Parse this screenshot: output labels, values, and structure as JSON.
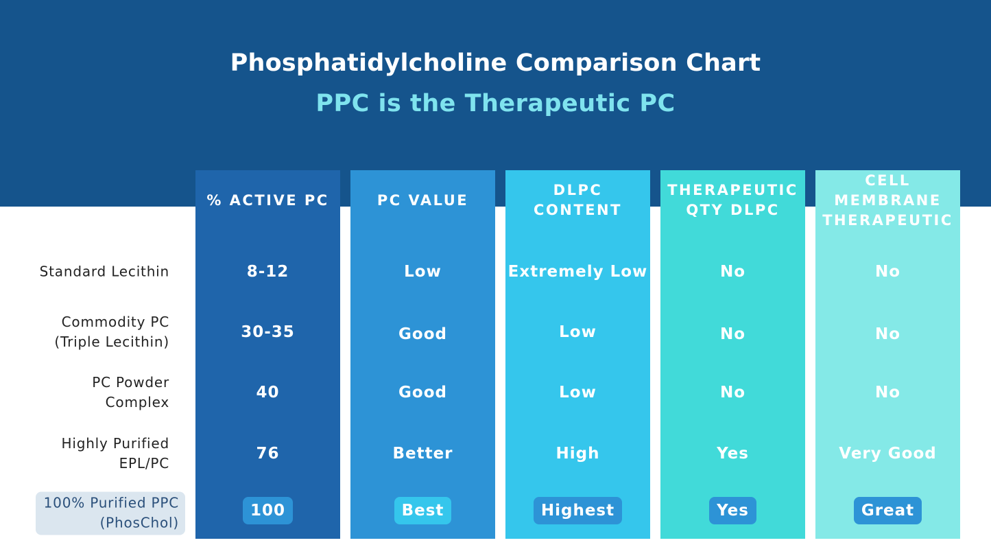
{
  "title": "Phosphatidylcholine Comparison Chart",
  "subtitle": "PPC is the Therapeutic PC",
  "colors": {
    "banner": "#15548c",
    "subtitle": "#7fe3ee",
    "col1": "#1f65ab",
    "col2": "#2d93d6",
    "col3": "#35c6ec",
    "col4": "#41dad9",
    "col5": "#84e9e7",
    "highlight_label_bg": "#dbe6ef"
  },
  "columns": [
    {
      "header": "% ACTIVE PC"
    },
    {
      "header": "PC VALUE"
    },
    {
      "header": "DLPC\nCONTENT"
    },
    {
      "header": "THERAPEUTIC\nQTY DLPC"
    },
    {
      "header": "CELL\nMEMBRANE\nTHERAPEUTIC"
    }
  ],
  "rows": [
    {
      "label": "Standard Lecithin",
      "values": [
        "8-12",
        "Low",
        "Extremely Low",
        "No",
        "No"
      ]
    },
    {
      "label": "Commodity PC\n(Triple Lecithin)",
      "values": [
        "30-35",
        "Good",
        "Low",
        "No",
        "No"
      ]
    },
    {
      "label": "PC Powder\nComplex",
      "values": [
        "40",
        "Good",
        "Low",
        "No",
        "No"
      ]
    },
    {
      "label": "Highly Purified\nEPL/PC",
      "values": [
        "76",
        "Better",
        "High",
        "Yes",
        "Very Good"
      ]
    },
    {
      "label": "100% Purified PPC\n(PhosChol)",
      "values": [
        "100",
        "Best",
        "Highest",
        "Yes",
        "Great"
      ]
    }
  ]
}
